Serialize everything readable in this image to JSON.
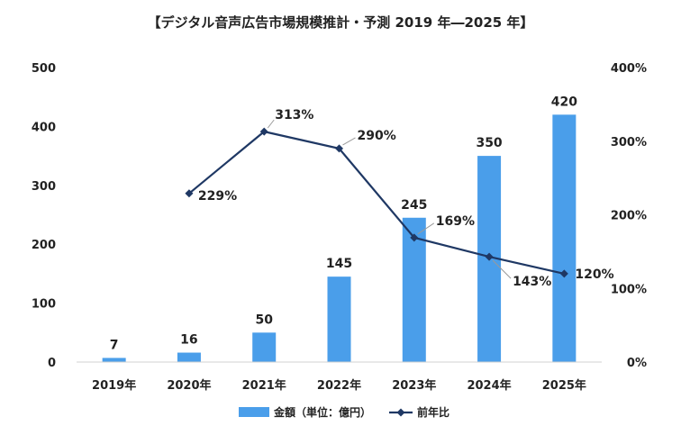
{
  "chart_data": {
    "type": "bar",
    "title": "【デジタル音声広告市場規模推計・予測 2019 年―2025 年】",
    "categories": [
      "2019年",
      "2020年",
      "2021年",
      "2022年",
      "2023年",
      "2024年",
      "2025年"
    ],
    "series": [
      {
        "name": "金額（単位：億円）",
        "type": "bar",
        "axis": "left",
        "color": "#4a9eea",
        "values": [
          7,
          16,
          50,
          145,
          245,
          350,
          420
        ],
        "labels": [
          "7",
          "16",
          "50",
          "145",
          "245",
          "350",
          "420"
        ]
      },
      {
        "name": "前年比",
        "type": "line",
        "axis": "right",
        "color": "#1f3864",
        "values": [
          null,
          229,
          313,
          290,
          169,
          143,
          120
        ],
        "labels": [
          null,
          "229%",
          "313%",
          "290%",
          "169%",
          "143%",
          "120%"
        ]
      }
    ],
    "y_left": {
      "ylim": [
        0,
        500
      ],
      "ticks": [
        "0",
        "100",
        "200",
        "300",
        "400",
        "500"
      ]
    },
    "y_right": {
      "ylim": [
        0,
        400
      ],
      "ticks": [
        "0%",
        "100%",
        "200%",
        "300%",
        "400%"
      ]
    },
    "grid": false,
    "legend": "bottom"
  }
}
